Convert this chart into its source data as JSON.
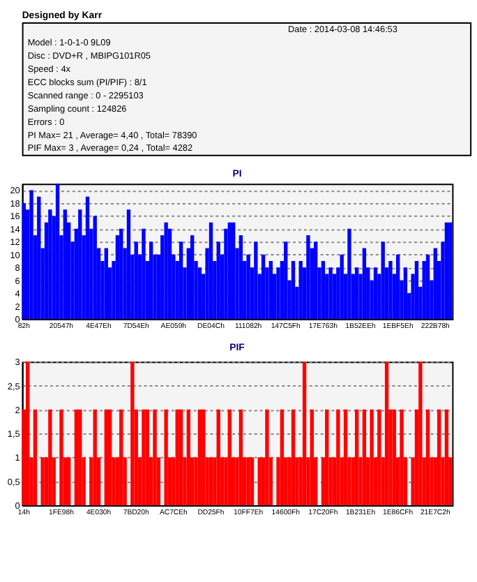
{
  "chart_data": [
    {
      "type": "other",
      "title": "Designed by Karr",
      "annotations": [
        "Date : 2014-03-08 14:46:53",
        "Model : 1-0-1-0 9L09",
        "Disc : DVD+R , MBIPG101R05",
        "Speed : 4x",
        "ECC blocks sum (PI/PIF) : 8/1",
        "Scanned range : 0 - 2295103",
        "Sampling count : 124826",
        "Errors : 0",
        "PI Max= 21 , Average= 4,40 , Total= 78390",
        "PIF Max= 3 , Average= 0,24 , Total= 4282"
      ]
    },
    {
      "type": "bar",
      "title": "PI",
      "color": "#0000ff",
      "grid": "y",
      "ylim": [
        0,
        21
      ],
      "yticks": [
        0,
        2,
        4,
        6,
        8,
        10,
        12,
        14,
        16,
        18,
        20
      ],
      "categories": [
        "82h",
        null,
        null,
        null,
        null,
        null,
        null,
        null,
        null,
        null,
        "20547h",
        null,
        null,
        null,
        null,
        null,
        null,
        null,
        null,
        null,
        "4E47Eh",
        null,
        null,
        null,
        null,
        null,
        null,
        null,
        null,
        null,
        "7D54Eh",
        null,
        null,
        null,
        null,
        null,
        null,
        null,
        null,
        null,
        "AE059h",
        null,
        null,
        null,
        null,
        null,
        null,
        null,
        null,
        null,
        "DE04Ch",
        null,
        null,
        null,
        null,
        null,
        null,
        null,
        null,
        null,
        "111082h",
        null,
        null,
        null,
        null,
        null,
        null,
        null,
        null,
        null,
        "147C5Fh",
        null,
        null,
        null,
        null,
        null,
        null,
        null,
        null,
        null,
        "17E763h",
        null,
        null,
        null,
        null,
        null,
        null,
        null,
        null,
        null,
        "1B52EEh",
        null,
        null,
        null,
        null,
        null,
        null,
        null,
        null,
        null,
        "1EBF5Eh",
        null,
        null,
        null,
        null,
        null,
        null,
        null,
        null,
        null,
        "222B78h",
        null,
        null,
        null,
        null
      ],
      "values": [
        18,
        17,
        20,
        13,
        19,
        11,
        15,
        17,
        16,
        21,
        13,
        17,
        15,
        12,
        14,
        17,
        13,
        19,
        14,
        16,
        11,
        9,
        11,
        8,
        9,
        13,
        14,
        11,
        17,
        10,
        12,
        10,
        14,
        9,
        12,
        10,
        10,
        13,
        15,
        14,
        10,
        9,
        12,
        8,
        11,
        13,
        9,
        8,
        7,
        11,
        15,
        9,
        12,
        10,
        14,
        15,
        15,
        11,
        13,
        9,
        10,
        8,
        12,
        7,
        10,
        8,
        9,
        7,
        8,
        9,
        12,
        6,
        9,
        5,
        9,
        8,
        13,
        11,
        12,
        8,
        9,
        7,
        8,
        7,
        8,
        10,
        7,
        14,
        7,
        8,
        7,
        11,
        8,
        6,
        8,
        7,
        12,
        8,
        9,
        7,
        10,
        6,
        8,
        4,
        7,
        9,
        5,
        9,
        10,
        6,
        11,
        9,
        12,
        15,
        15
      ]
    },
    {
      "type": "bar",
      "title": "PIF",
      "color": "#ff0000",
      "grid": "y",
      "ylim": [
        0,
        3
      ],
      "yticks": [
        0,
        {
          "value": 0.5,
          "label": "0,5"
        },
        1,
        {
          "value": 1.5,
          "label": "1,5"
        },
        2,
        {
          "value": 2.5,
          "label": "2,5"
        },
        3
      ],
      "categories": [
        "14h",
        null,
        null,
        null,
        null,
        null,
        null,
        null,
        null,
        null,
        "1FE98h",
        null,
        null,
        null,
        null,
        null,
        null,
        null,
        null,
        null,
        "4E030h",
        null,
        null,
        null,
        null,
        null,
        null,
        null,
        null,
        null,
        "7BD20h",
        null,
        null,
        null,
        null,
        null,
        null,
        null,
        null,
        null,
        "AC7CEh",
        null,
        null,
        null,
        null,
        null,
        null,
        null,
        null,
        null,
        "DD25Fh",
        null,
        null,
        null,
        null,
        null,
        null,
        null,
        null,
        null,
        "10FF7Eh",
        null,
        null,
        null,
        null,
        null,
        null,
        null,
        null,
        null,
        "14600Fh",
        null,
        null,
        null,
        null,
        null,
        null,
        null,
        null,
        null,
        "17C20Fh",
        null,
        null,
        null,
        null,
        null,
        null,
        null,
        null,
        null,
        "1B231Eh",
        null,
        null,
        null,
        null,
        null,
        null,
        null,
        null,
        null,
        "1E86CFh",
        null,
        null,
        null,
        null,
        null,
        null,
        null,
        null,
        null,
        "21E7C2h",
        null,
        null,
        null,
        null
      ],
      "values": [
        2,
        3,
        1,
        2,
        0,
        1,
        1,
        2,
        1,
        0,
        2,
        1,
        1,
        0,
        2,
        2,
        1,
        0,
        1,
        2,
        1,
        0,
        2,
        2,
        1,
        1,
        2,
        1,
        0,
        3,
        2,
        1,
        2,
        2,
        1,
        2,
        1,
        0,
        2,
        1,
        1,
        2,
        2,
        1,
        2,
        1,
        1,
        2,
        2,
        1,
        1,
        1,
        2,
        1,
        1,
        2,
        1,
        1,
        2,
        1,
        1,
        1,
        0,
        1,
        1,
        2,
        1,
        0,
        1,
        2,
        1,
        1,
        2,
        1,
        1,
        3,
        1,
        2,
        1,
        0,
        1,
        2,
        1,
        1,
        2,
        1,
        2,
        1,
        1,
        2,
        1,
        2,
        1,
        2,
        1,
        2,
        1,
        3,
        2,
        2,
        1,
        2,
        1,
        0,
        1,
        2,
        3,
        1,
        2,
        1,
        1,
        2,
        1,
        2,
        1
      ]
    }
  ]
}
